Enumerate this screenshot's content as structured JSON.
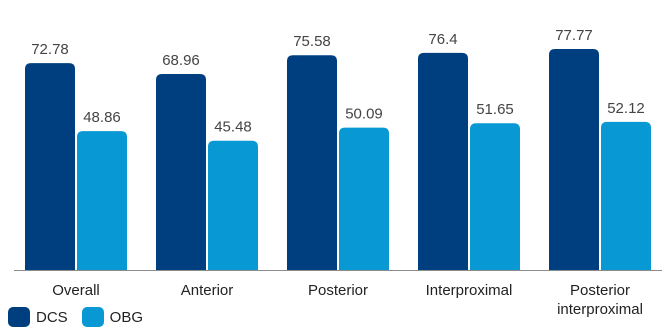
{
  "chart_data": {
    "type": "bar",
    "categories": [
      "Overall",
      "Anterior",
      "Posterior",
      "Interproximal",
      "Posterior\ninterproximal"
    ],
    "series": [
      {
        "name": "DCS",
        "values": [
          72.78,
          68.96,
          75.58,
          76.4,
          77.77
        ],
        "labels": [
          "72.78",
          "68.96",
          "75.58",
          "76.4",
          "77.77"
        ],
        "color": "#003f7f"
      },
      {
        "name": "OBG",
        "values": [
          48.86,
          45.48,
          50.09,
          51.65,
          52.12
        ],
        "labels": [
          "48.86",
          "45.48",
          "50.09",
          "51.65",
          "52.12"
        ],
        "color": "#0898d4"
      }
    ],
    "ylim": [
      0,
      95
    ],
    "grid": false,
    "legend_position": "bottom-left",
    "title": "",
    "xlabel": "",
    "ylabel": ""
  }
}
